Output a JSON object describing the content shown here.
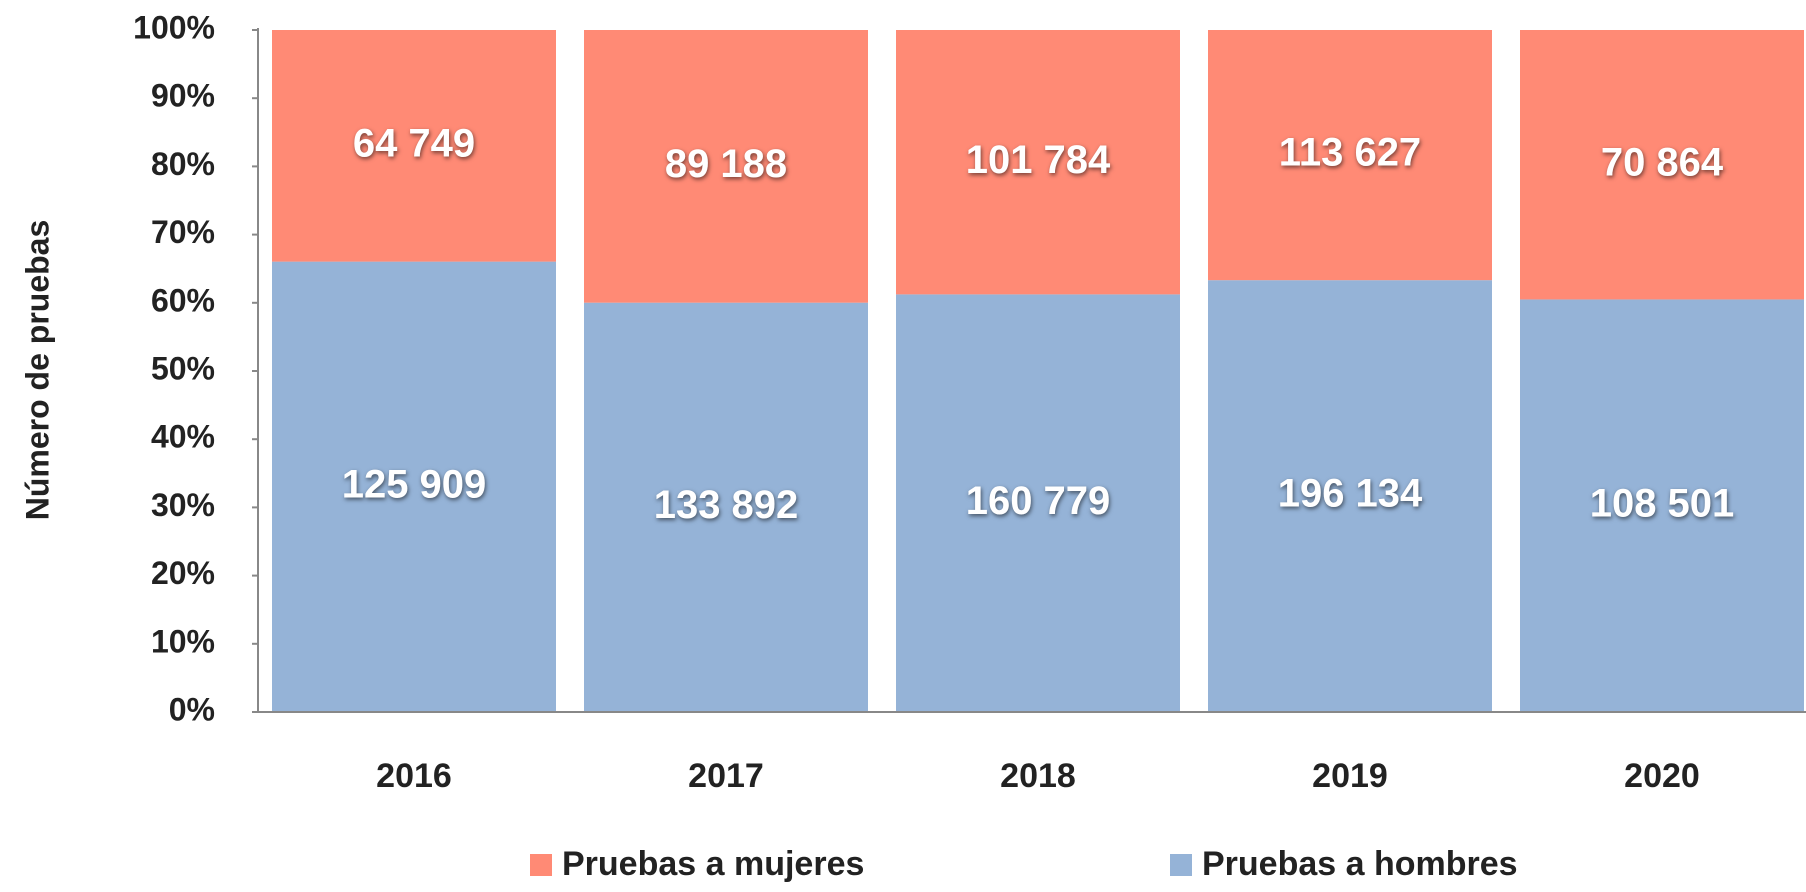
{
  "chart_data": {
    "type": "bar",
    "stacking": "percent",
    "y_label": "Número de pruebas",
    "categories": [
      "2016",
      "2017",
      "2018",
      "2019",
      "2020"
    ],
    "series": [
      {
        "name": "Pruebas a hombres",
        "color": "#95b3d7",
        "values": [
          125909,
          133892,
          160779,
          196134,
          108501
        ],
        "value_labels": [
          "125 909",
          "133 892",
          "160 779",
          "196 134",
          "108 501"
        ]
      },
      {
        "name": "Pruebas a mujeres",
        "color": "#ff8a75",
        "values": [
          64749,
          89188,
          101784,
          113627,
          70864
        ],
        "value_labels": [
          "64 749",
          "89 188",
          "101 784",
          "113 627",
          "70 864"
        ]
      }
    ],
    "ylim": [
      0,
      100
    ],
    "yticks": [
      {
        "value": 0,
        "label": "0%"
      },
      {
        "value": 10,
        "label": "10%"
      },
      {
        "value": 20,
        "label": "20%"
      },
      {
        "value": 30,
        "label": "30%"
      },
      {
        "value": 40,
        "label": "40%"
      },
      {
        "value": 50,
        "label": "50%"
      },
      {
        "value": 60,
        "label": "60%"
      },
      {
        "value": 70,
        "label": "70%"
      },
      {
        "value": 80,
        "label": "80%"
      },
      {
        "value": 90,
        "label": "90%"
      },
      {
        "value": 100,
        "label": "100%"
      }
    ],
    "legend": "bottom"
  }
}
